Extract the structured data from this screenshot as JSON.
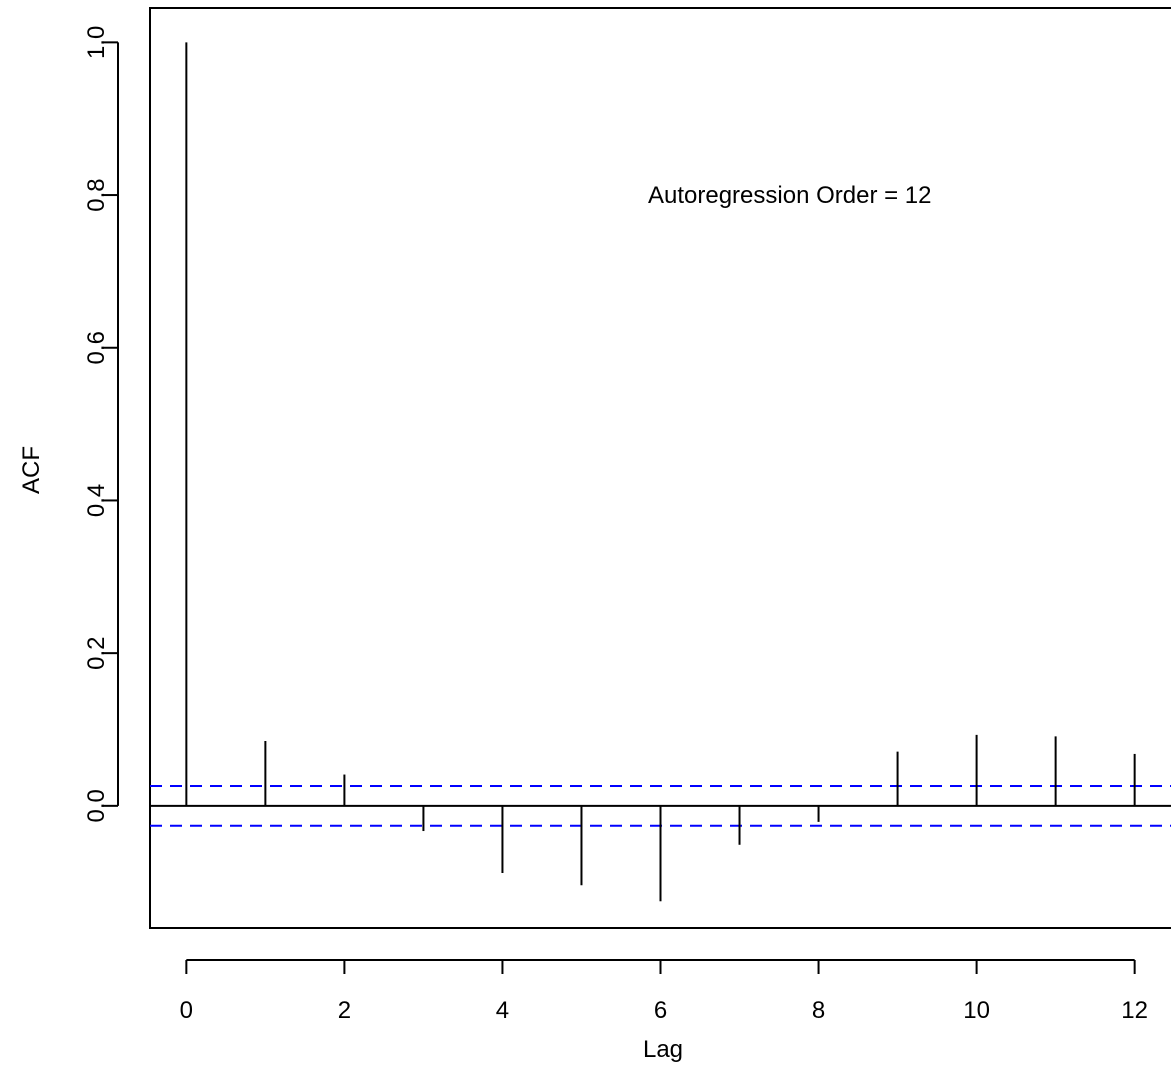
{
  "chart_data": {
    "type": "bar",
    "title": "",
    "xlabel": "Lag",
    "ylabel": "ACF",
    "annotation": "Autoregression Order = 12",
    "x": [
      0,
      1,
      2,
      3,
      4,
      5,
      6,
      7,
      8,
      9,
      10,
      11,
      12
    ],
    "values": [
      1.0,
      0.085,
      0.041,
      -0.033,
      -0.088,
      -0.104,
      -0.125,
      -0.051,
      -0.021,
      0.071,
      0.093,
      0.091,
      0.068
    ],
    "confidence_band": [
      -0.026,
      0.026
    ],
    "xlim": [
      -0.46,
      12.46
    ],
    "ylim": [
      -0.16,
      1.045
    ],
    "x_ticks": [
      0,
      2,
      4,
      6,
      8,
      10,
      12
    ],
    "x_tick_labels": [
      "0",
      "2",
      "4",
      "6",
      "8",
      "10",
      "12"
    ],
    "y_ticks": [
      0.0,
      0.2,
      0.4,
      0.6,
      0.8,
      1.0
    ],
    "y_tick_labels": [
      "0.0",
      "0.2",
      "0.4",
      "0.6",
      "0.8",
      "1.0"
    ],
    "grid": false,
    "legend": "none",
    "colors": {
      "spike": "#000000",
      "zero_line": "#000000",
      "confidence_band": "#0000ff",
      "axis": "#000000"
    }
  }
}
